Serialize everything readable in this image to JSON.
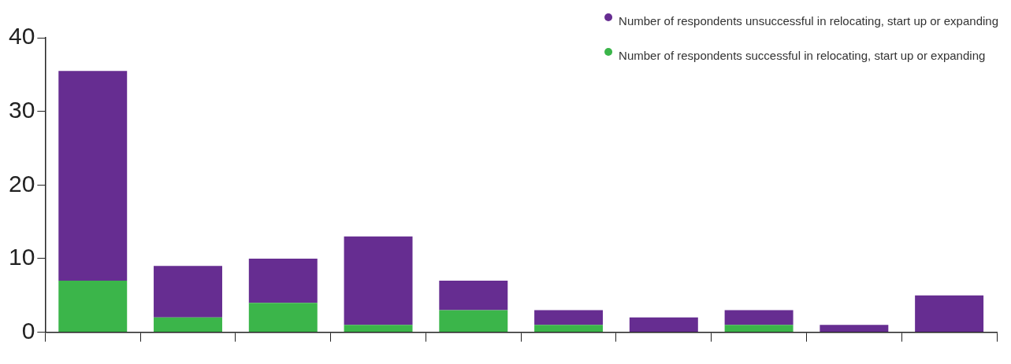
{
  "chart_data": {
    "type": "bar",
    "stacked": true,
    "categories": [
      null,
      null,
      null,
      null,
      null,
      null,
      null,
      null,
      null,
      null
    ],
    "series": [
      {
        "name": "Number of respondents successful in relocating, start up or expanding",
        "color": "#3bb54a",
        "values": [
          7,
          2,
          4,
          1,
          3,
          1,
          0,
          1,
          0,
          0
        ]
      },
      {
        "name": "Number of respondents unsuccessful in relocating, start up or expanding",
        "color": "#662d91",
        "values": [
          28.5,
          7,
          6,
          12,
          4,
          2,
          2,
          2,
          1,
          5
        ]
      }
    ],
    "ylim": [
      0,
      40
    ],
    "yticks": [
      0,
      10,
      20,
      30,
      40
    ],
    "grid": false,
    "legend": "top right"
  }
}
